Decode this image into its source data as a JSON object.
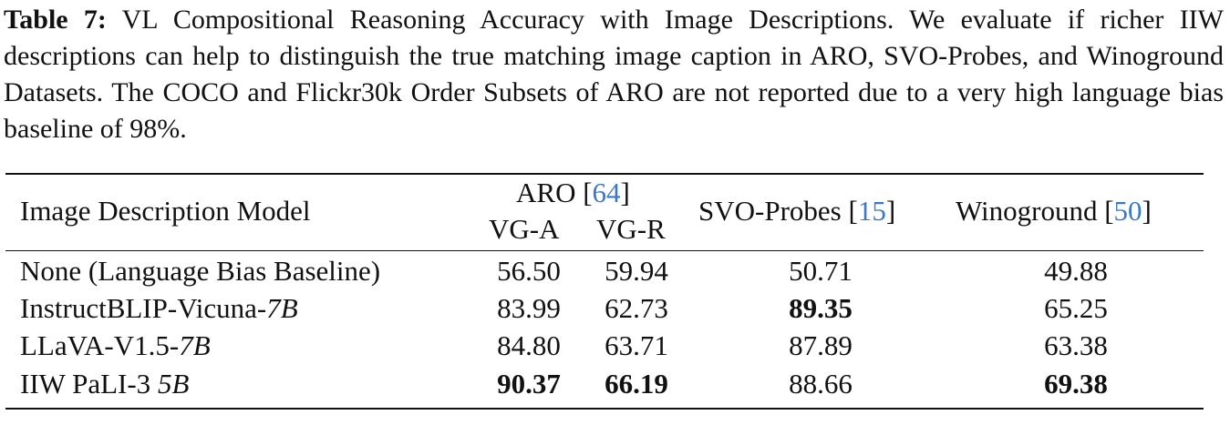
{
  "caption": {
    "label": "Table 7:",
    "text": " VL Compositional Reasoning Accuracy with Image Descriptions. We evaluate if richer IIW descriptions can help to distinguish the true matching image caption in ARO, SVO-Probes, and Winoground Datasets. The COCO and Flickr30k Order Subsets of ARO are not reported due to a very high language bias baseline of 98%."
  },
  "header": {
    "model_col": "Image Description Model",
    "aro": "ARO [",
    "aro_ref": "64",
    "aro_close": "]",
    "vga": "VG-A",
    "vgr": "VG-R",
    "svo": "SVO-Probes [",
    "svo_ref": "15",
    "svo_close": "]",
    "wino": "Winoground [",
    "wino_ref": "50",
    "wino_close": "]"
  },
  "rows": [
    {
      "model": "None (Language Bias Baseline)",
      "model_suffix": "",
      "vga": "56.50",
      "vgr": "59.94",
      "svo": "50.71",
      "wino": "49.88"
    },
    {
      "model": "InstructBLIP-Vicuna-",
      "model_suffix": "7B",
      "vga": "83.99",
      "vgr": "62.73",
      "svo": "89.35",
      "wino": "65.25"
    },
    {
      "model": "LLaVA-V1.5-",
      "model_suffix": "7B",
      "vga": "84.80",
      "vgr": "63.71",
      "svo": "87.89",
      "wino": "63.38"
    },
    {
      "model": "IIW PaLI-3 ",
      "model_suffix": "5B",
      "vga": "90.37",
      "vgr": "66.19",
      "svo": "88.66",
      "wino": "69.38"
    }
  ]
}
